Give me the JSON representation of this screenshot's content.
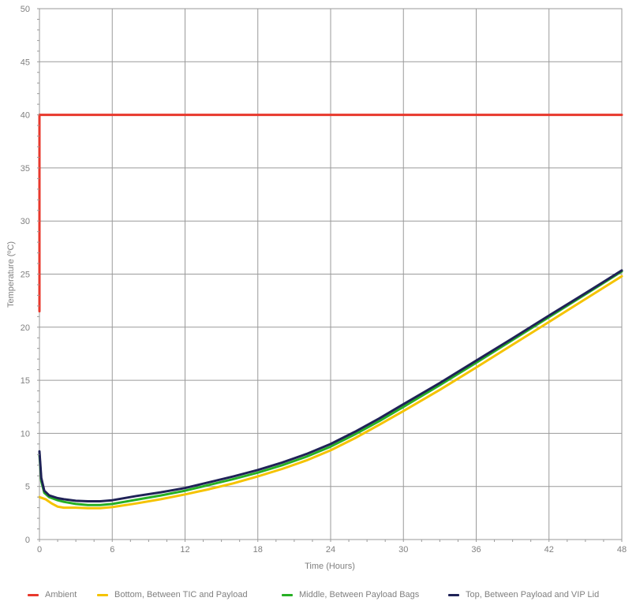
{
  "chart_data": {
    "type": "line",
    "xlabel": "Time (Hours)",
    "ylabel": "Temperature (ºC)",
    "xlim": [
      0,
      48
    ],
    "ylim": [
      0,
      50
    ],
    "xticks": [
      "0",
      "6",
      "12",
      "18",
      "24",
      "30",
      "36",
      "42",
      "48"
    ],
    "yticks": [
      "0",
      "5",
      "10",
      "15",
      "20",
      "25",
      "30",
      "35",
      "40",
      "45",
      "50"
    ],
    "grid": true,
    "legend_position": "bottom",
    "series": [
      {
        "name": "Ambient",
        "color": "#e8382c",
        "x": [
          0,
          0,
          48
        ],
        "y": [
          21.5,
          40,
          40
        ]
      },
      {
        "name": "Bottom, Between TIC and Payload",
        "color": "#f5c300",
        "x": [
          0,
          0.5,
          1,
          1.5,
          2,
          3,
          4,
          5,
          6,
          8,
          10,
          12,
          14,
          16,
          18,
          20,
          22,
          24,
          26,
          28,
          30,
          33,
          36,
          39,
          42,
          45,
          48
        ],
        "y": [
          4.0,
          3.8,
          3.4,
          3.1,
          3.0,
          3.0,
          2.95,
          2.95,
          3.05,
          3.4,
          3.8,
          4.25,
          4.75,
          5.3,
          5.95,
          6.65,
          7.45,
          8.4,
          9.55,
          10.8,
          12.1,
          14.1,
          16.2,
          18.35,
          20.5,
          22.65,
          24.8
        ]
      },
      {
        "name": "Middle, Between Payload Bags",
        "color": "#27b024",
        "x": [
          0,
          0.15,
          0.4,
          0.8,
          1.5,
          2,
          3,
          4,
          5,
          6,
          8,
          10,
          12,
          14,
          16,
          18,
          20,
          22,
          24,
          26,
          28,
          30,
          33,
          36,
          39,
          42,
          45,
          48
        ],
        "y": [
          8.0,
          5.5,
          4.4,
          4.0,
          3.7,
          3.55,
          3.35,
          3.25,
          3.25,
          3.35,
          3.75,
          4.15,
          4.6,
          5.15,
          5.7,
          6.3,
          7.0,
          7.8,
          8.75,
          9.9,
          11.15,
          12.5,
          14.55,
          16.65,
          18.8,
          20.95,
          23.1,
          25.25
        ]
      },
      {
        "name": "Top, Between Payload and VIP Lid",
        "color": "#1f2257",
        "x": [
          0,
          0.15,
          0.4,
          0.8,
          1.5,
          2,
          3,
          4,
          5,
          6,
          8,
          10,
          12,
          14,
          16,
          18,
          20,
          22,
          24,
          26,
          28,
          30,
          33,
          36,
          39,
          42,
          45,
          48
        ],
        "y": [
          8.3,
          5.8,
          4.6,
          4.15,
          3.9,
          3.8,
          3.65,
          3.6,
          3.6,
          3.7,
          4.1,
          4.45,
          4.85,
          5.4,
          5.95,
          6.55,
          7.25,
          8.05,
          9.0,
          10.15,
          11.4,
          12.75,
          14.75,
          16.85,
          18.95,
          21.1,
          23.2,
          25.35
        ]
      }
    ]
  }
}
